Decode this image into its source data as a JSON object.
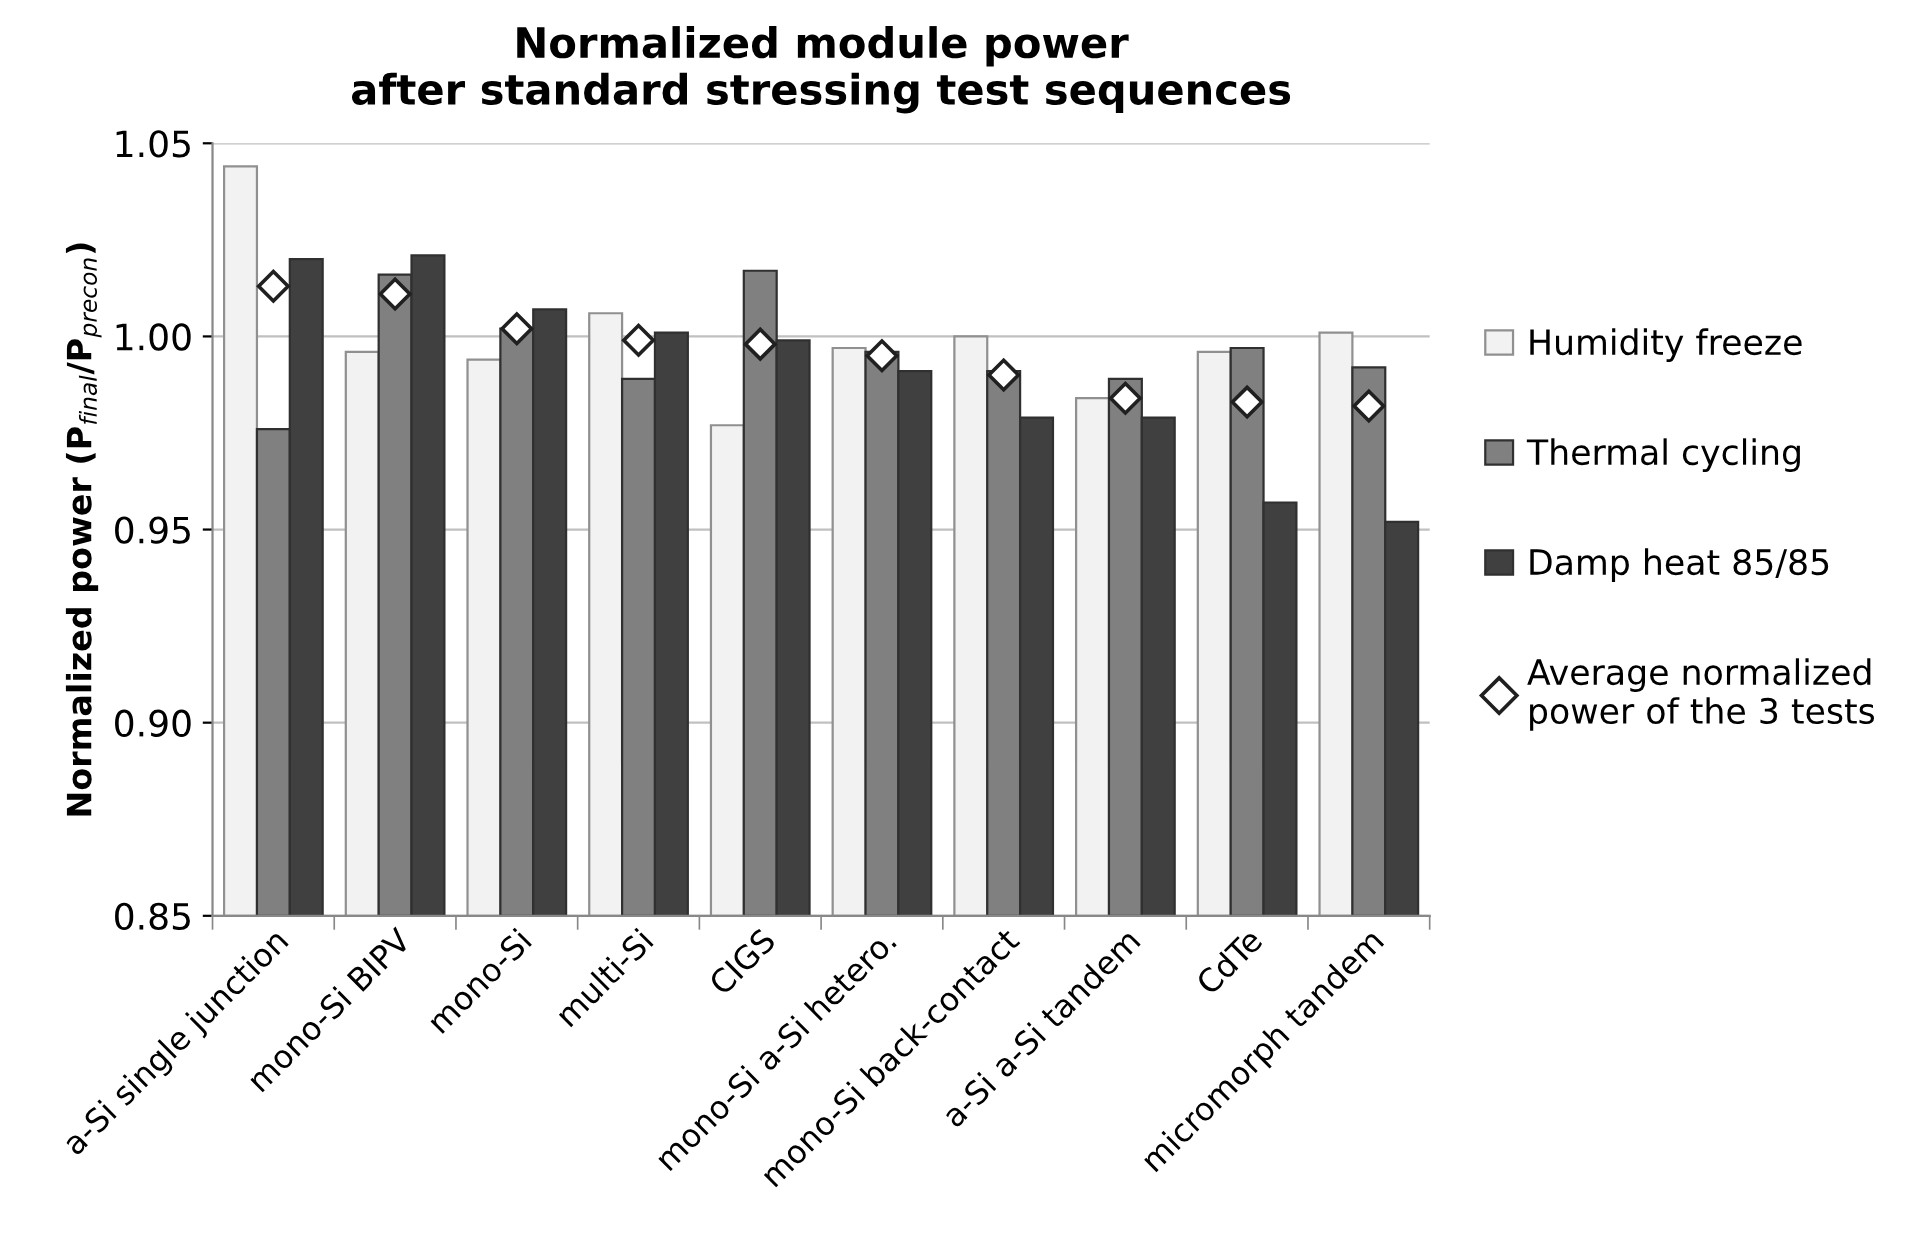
{
  "chart_data": {
    "type": "bar",
    "title": "Normalized module power\nafter standard stressing test sequences",
    "ylabel": "Normalized power (P$_{final}$/P$_{precon}$)",
    "categories": [
      "a-Si single junction",
      "mono-Si BIPV",
      "mono-Si",
      "multi-Si",
      "CIGS",
      "mono-Si a-Si hetero.",
      "mono-Si back-contact",
      "a-Si a-Si tandem",
      "CdTe",
      "micromorph tandem"
    ],
    "series": [
      {
        "name": "Humidity freeze",
        "color": "#f2f2f2",
        "values": [
          1.044,
          0.996,
          0.994,
          1.006,
          0.977,
          0.997,
          1.0,
          0.984,
          0.996,
          1.001
        ]
      },
      {
        "name": "Thermal cycling",
        "color": "#808080",
        "values": [
          0.976,
          1.016,
          1.002,
          0.989,
          1.017,
          0.996,
          0.991,
          0.989,
          0.997,
          0.992
        ]
      },
      {
        "name": "Damp heat 85/85",
        "color": "#404040",
        "values": [
          1.02,
          1.021,
          1.007,
          1.001,
          0.999,
          0.991,
          0.979,
          0.979,
          0.957,
          0.952
        ]
      },
      {
        "name": "Average normalized\npower of the 3 tests",
        "type": "scatter",
        "marker": "diamond",
        "color": "#ffffff",
        "values": [
          1.013,
          1.011,
          1.002,
          0.999,
          0.998,
          0.995,
          0.99,
          0.984,
          0.983,
          0.982
        ]
      }
    ],
    "ylim": [
      0.85,
      1.05
    ],
    "yticks": [
      {
        "value": 0.85,
        "label": "0.85"
      },
      {
        "value": 0.9,
        "label": "0.90"
      },
      {
        "value": 0.95,
        "label": "0.95"
      },
      {
        "value": 1.0,
        "label": "1.00"
      },
      {
        "value": 1.05,
        "label": "1.05"
      }
    ],
    "grid": "y",
    "legend": "right"
  }
}
